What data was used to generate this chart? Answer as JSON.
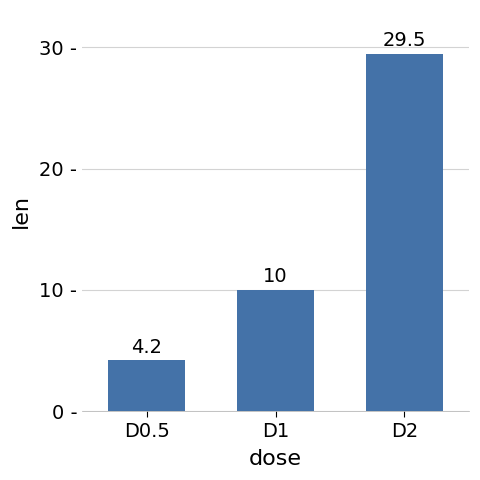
{
  "categories": [
    "D0.5",
    "D1",
    "D2"
  ],
  "values": [
    4.2,
    10.0,
    29.5
  ],
  "bar_labels": [
    "4.2",
    "10",
    "29.5"
  ],
  "bar_color": "#4472a8",
  "xlabel": "dose",
  "ylabel": "len",
  "ylim": [
    0,
    33
  ],
  "yticks": [
    0,
    10,
    20,
    30
  ],
  "ytick_labels": [
    "0 -",
    "10 -",
    "20 -",
    "30 -"
  ],
  "background_color": "#ffffff",
  "panel_background": "#ffffff",
  "grid_color": "#d3d3d3",
  "tick_label_fontsize": 14,
  "axis_label_fontsize": 16,
  "bar_label_fontsize": 14,
  "bar_width": 0.6,
  "figsize": [
    4.8,
    4.8
  ],
  "dpi": 100
}
